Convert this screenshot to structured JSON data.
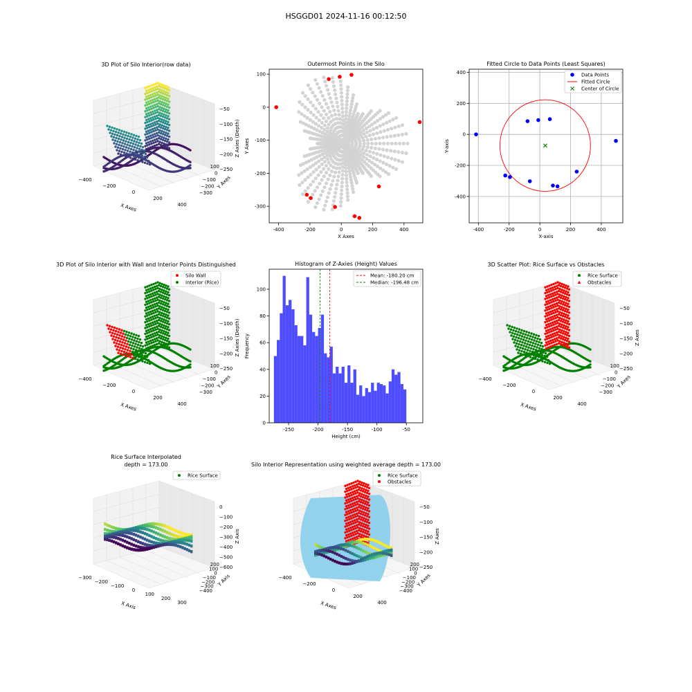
{
  "figure": {
    "suptitle": "HSGGD01 2024-11-16 00:12:50"
  },
  "colors": {
    "grey_points": "#d3d3d3",
    "outer_points": "#ff0000",
    "data_points": "#0000ff",
    "fit_circle": "#ff0000",
    "center": "#008000",
    "rice": "#008000",
    "obstacle": "#ff0000",
    "hist_bar": "#4d4dff",
    "mean_line": "#ff0000",
    "median_line": "#008000",
    "silo_wall": "#87ceeb"
  },
  "panels": {
    "p1": {
      "title": "3D Plot of Silo Interior(row data)",
      "xlabel": "X Axes",
      "ylabel": "Y Axes",
      "zlabel": "Z Axies (Depth)",
      "xticks": [
        "−400",
        "−200",
        "0",
        "200",
        "400"
      ],
      "yticks": [
        "100",
        "0",
        "−100",
        "−200",
        "−300"
      ],
      "zticks": [
        "−50",
        "−100",
        "−150",
        "−200",
        "−250"
      ]
    },
    "p4": {
      "title": "3D Plot of Silo Interior with Wall and Interior Points Distinguished",
      "xlabel": "X Axes",
      "ylabel": "Y Axes",
      "zlabel": "Z Axies (Depth)",
      "xticks": [
        "−400",
        "−200",
        "0",
        "200",
        "400"
      ],
      "yticks": [
        "100",
        "0",
        "−100",
        "−200",
        "−300"
      ],
      "zticks": [
        "−50",
        "−100",
        "−150",
        "−200",
        "−250"
      ],
      "legend": [
        "Silo Wall",
        "Interior (Rice)"
      ]
    },
    "p6": {
      "title": "3D Scatter Plot: Rice Surface vs Obstacles",
      "xlabel": "X Axes",
      "ylabel": "Y Axes",
      "zlabel": "Z Axes",
      "xticks": [
        "−400",
        "−200",
        "0",
        "200",
        "400"
      ],
      "yticks": [
        "100",
        "0",
        "−100",
        "−200",
        "−300"
      ],
      "zticks": [
        "−50",
        "−100",
        "−150",
        "−200",
        "−250"
      ],
      "legend": [
        "Rice Surface",
        "Obstacles"
      ]
    },
    "p7": {
      "title_line1": "Rice Surface Interpolated",
      "title_line2": "depth = 173.00",
      "xlabel": "X Axis",
      "ylabel": "Y Axis",
      "zlabel": "Z Axis",
      "xticks": [
        "−300",
        "−200",
        "−100",
        "0",
        "100",
        "200",
        "300"
      ],
      "yticks": [
        "200",
        "100",
        "0",
        "−100",
        "−200",
        "−300",
        "−400"
      ],
      "zticks": [
        "0",
        "−100",
        "−200",
        "−300",
        "−400",
        "−500",
        "−600"
      ],
      "legend": [
        "Rice Surface"
      ]
    },
    "p8": {
      "title": "Silo Interior Representation using weighted average depth = 173.00",
      "xlabel": "X Axes",
      "ylabel": "Y Axes",
      "zlabel": "Z Axes",
      "xticks": [
        "−400",
        "−200",
        "0",
        "200",
        "400"
      ],
      "yticks": [
        "200",
        "100",
        "0",
        "−100",
        "−200",
        "−300",
        "−400"
      ],
      "zticks": [
        "−50",
        "−100",
        "−150",
        "−200",
        "−250"
      ],
      "legend": [
        "Rice Surface",
        "Obstacles"
      ]
    }
  },
  "chart_data": [
    {
      "id": "p2",
      "type": "scatter",
      "title": "Outermost Points in the Silo",
      "xlabel": "X Axes",
      "ylabel": "Y Axes",
      "xlim": [
        -460,
        520
      ],
      "ylim": [
        -350,
        115
      ],
      "xticks": [
        -400,
        -200,
        0,
        200,
        400
      ],
      "yticks": [
        100,
        0,
        -100,
        -200,
        -300
      ],
      "series": [
        {
          "points": [
            [
              -415,
              0
            ],
            [
              -80,
              85
            ],
            [
              -10,
              92
            ],
            [
              65,
              98
            ],
            [
              500,
              -45
            ],
            [
              240,
              -240
            ],
            [
              -220,
              -265
            ],
            [
              -195,
              -275
            ],
            [
              -40,
              -302
            ],
            [
              85,
              -330
            ],
            [
              115,
              -335
            ]
          ]
        }
      ]
    },
    {
      "id": "p3",
      "type": "scatter",
      "title": "Fitted Circle to Data Points (Least Squares)",
      "xlabel": "X-axis",
      "ylabel": "Y-axis",
      "xlim": [
        -460,
        540
      ],
      "ylim": [
        -570,
        420
      ],
      "xticks": [
        -400,
        -200,
        0,
        200,
        400
      ],
      "yticks": [
        400,
        200,
        0,
        -200,
        -400
      ],
      "legend": [
        "Data Points",
        "Fitted Circle",
        "Center of Circle"
      ],
      "series": [
        {
          "name": "Data Points",
          "points": [
            [
              -415,
              0
            ],
            [
              -80,
              85
            ],
            [
              -10,
              92
            ],
            [
              65,
              98
            ],
            [
              495,
              -42
            ],
            [
              240,
              -240
            ],
            [
              -225,
              -265
            ],
            [
              -195,
              -275
            ],
            [
              -65,
              -302
            ],
            [
              85,
              -330
            ],
            [
              115,
              -335
            ]
          ]
        },
        {
          "name": "Fitted Circle",
          "center": [
            35,
            -72
          ],
          "radius": 295
        },
        {
          "name": "Center of Circle",
          "points": [
            [
              35,
              -72
            ]
          ]
        }
      ]
    },
    {
      "id": "p5",
      "type": "bar",
      "title": "Histogram of Z-Axies (Height) Values",
      "xlabel": "Height (cm)",
      "ylabel": "Frequency",
      "xlim": [
        -283,
        -22
      ],
      "ylim": [
        0,
        115
      ],
      "xticks": [
        -250,
        -200,
        -150,
        -100,
        -50
      ],
      "yticks": [
        0,
        20,
        40,
        60,
        80,
        100
      ],
      "bin_start": -275,
      "bin_width": 5,
      "values": [
        50,
        62,
        82,
        110,
        88,
        92,
        85,
        73,
        65,
        65,
        58,
        109,
        81,
        68,
        65,
        71,
        81,
        52,
        49,
        57,
        37,
        42,
        37,
        42,
        30,
        43,
        30,
        40,
        21,
        28,
        20,
        26,
        23,
        30,
        24,
        30,
        29,
        28,
        22,
        31,
        40,
        36,
        38,
        29,
        25
      ],
      "mean": -180.2,
      "median": -196.48,
      "legend": [
        "Mean: -180.20 cm",
        "Median: -196.48 cm"
      ]
    }
  ]
}
